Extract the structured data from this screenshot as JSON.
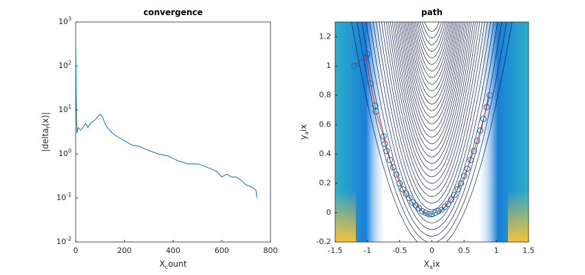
{
  "chart_data": [
    {
      "type": "line",
      "title": "convergence",
      "xlabel": "X_count",
      "ylabel": "|delta_f(x)|",
      "log_y": true,
      "color": "#0072bd",
      "x": [
        0,
        2,
        5,
        10,
        20,
        30,
        40,
        50,
        60,
        70,
        80,
        90,
        100,
        105,
        110,
        120,
        130,
        150,
        170,
        200,
        230,
        260,
        300,
        340,
        380,
        420,
        460,
        500,
        540,
        580,
        600,
        620,
        640,
        660,
        680,
        700,
        720,
        740,
        745
      ],
      "values": [
        300,
        20,
        3,
        4,
        3.5,
        4,
        5,
        4,
        5,
        5.5,
        6,
        7,
        8,
        7.5,
        7,
        5,
        4,
        3,
        2.5,
        2,
        1.6,
        1.5,
        1.2,
        1,
        0.9,
        0.7,
        0.6,
        0.6,
        0.5,
        0.4,
        0.3,
        0.35,
        0.3,
        0.3,
        0.25,
        0.2,
        0.18,
        0.15,
        0.1
      ],
      "xlim": [
        0,
        800
      ],
      "xticks": [
        0,
        200,
        400,
        600,
        800
      ],
      "ylim": [
        0.01,
        1000
      ],
      "yticks": [
        {
          "value": 0.01,
          "label": "10^-2"
        },
        {
          "value": 0.1,
          "label": "10^-1"
        },
        {
          "value": 1,
          "label": "10^0"
        },
        {
          "value": 10,
          "label": "10^1"
        },
        {
          "value": 100,
          "label": "10^2"
        },
        {
          "value": 1000,
          "label": "10^3"
        }
      ]
    },
    {
      "type": "scatter",
      "title": "path",
      "xlabel": "X_aix",
      "ylabel": "y_aix",
      "color": "#0072bd",
      "line_color": "#ff0000",
      "x": [
        -1.2,
        -1.0,
        -1.02,
        -0.95,
        -0.88,
        -0.87,
        -0.75,
        -0.73,
        -0.7,
        -0.65,
        -0.6,
        -0.55,
        -0.5,
        -0.45,
        -0.4,
        -0.35,
        -0.3,
        -0.25,
        -0.2,
        -0.15,
        -0.1,
        -0.05,
        0,
        0.05,
        0.1,
        0.15,
        0.2,
        0.25,
        0.3,
        0.35,
        0.4,
        0.45,
        0.5,
        0.55,
        0.6,
        0.65,
        0.7,
        0.75,
        0.8,
        0.85,
        0.9
      ],
      "values": [
        1.0,
        1.08,
        1.06,
        0.88,
        0.73,
        0.69,
        0.52,
        0.47,
        0.42,
        0.36,
        0.31,
        0.26,
        0.2,
        0.16,
        0.13,
        0.1,
        0.07,
        0.05,
        0.03,
        0.01,
        0,
        -0.01,
        -0.01,
        0,
        0.01,
        0.02,
        0.04,
        0.06,
        0.09,
        0.12,
        0.16,
        0.2,
        0.25,
        0.3,
        0.36,
        0.42,
        0.49,
        0.56,
        0.64,
        0.72,
        0.8
      ],
      "xlim": [
        -1.5,
        1.5
      ],
      "xticks": [
        -1.5,
        -1,
        -0.5,
        0,
        0.5,
        1,
        1.5
      ],
      "ylim": [
        -0.2,
        1.3
      ],
      "yticks": [
        -0.2,
        0,
        0.2,
        0.4,
        0.6,
        0.8,
        1,
        1.2
      ]
    }
  ]
}
